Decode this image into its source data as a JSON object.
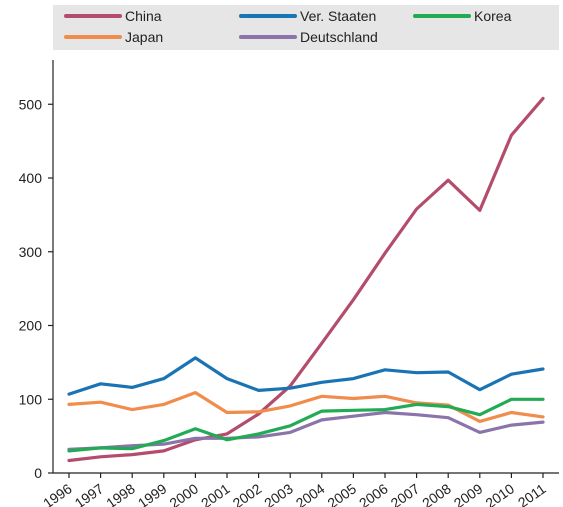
{
  "chart_data": {
    "type": "line",
    "title": "",
    "xlabel": "",
    "ylabel": "",
    "x": [
      "1996",
      "1997",
      "1998",
      "1999",
      "2000",
      "2001",
      "2002",
      "2003",
      "2004",
      "2005",
      "2006",
      "2007",
      "2008",
      "2009",
      "2010",
      "2011"
    ],
    "ylim": [
      0,
      560
    ],
    "yticks": [
      0,
      100,
      200,
      300,
      400,
      500
    ],
    "grid": false,
    "legend_position": "top",
    "series": [
      {
        "name": "China",
        "color": "#b44c6b",
        "values": [
          17,
          22,
          25,
          30,
          45,
          53,
          80,
          118,
          176,
          235,
          298,
          358,
          397,
          356,
          458,
          508
        ]
      },
      {
        "name": "Japan",
        "color": "#f08c4c",
        "values": [
          93,
          96,
          86,
          93,
          109,
          82,
          83,
          91,
          104,
          101,
          104,
          95,
          92,
          70,
          82,
          76
        ]
      },
      {
        "name": "Ver. Staaten",
        "color": "#1a74b3",
        "values": [
          107,
          121,
          116,
          128,
          156,
          128,
          112,
          115,
          123,
          128,
          140,
          136,
          137,
          113,
          134,
          141
        ]
      },
      {
        "name": "Deutschland",
        "color": "#8a74aa",
        "values": [
          32,
          34,
          37,
          39,
          47,
          47,
          49,
          55,
          72,
          77,
          82,
          79,
          75,
          55,
          65,
          69
        ]
      },
      {
        "name": "Korea",
        "color": "#22aa55",
        "values": [
          30,
          34,
          33,
          44,
          60,
          45,
          53,
          64,
          84,
          85,
          86,
          93,
          90,
          79,
          100,
          100
        ]
      }
    ]
  }
}
